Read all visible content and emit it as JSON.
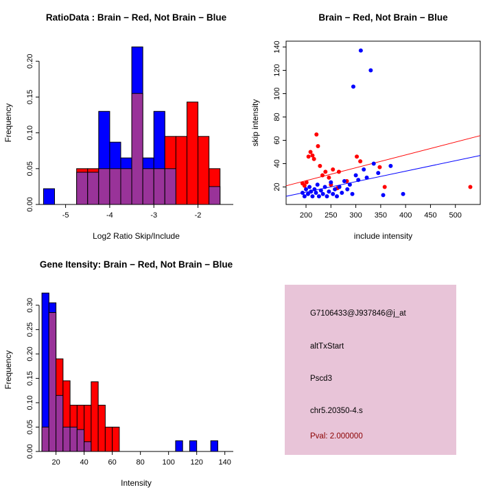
{
  "figure": {
    "background": "#ffffff"
  },
  "chart_data": [
    {
      "id": "ratio_hist",
      "type": "histogram",
      "title": "RatioData : Brain − Red, Not Brain − Blue",
      "xlabel": "Log2 Ratio Skip/Include",
      "ylabel": "Frequency",
      "xlim": [
        -5.6,
        -1.2
      ],
      "ylim": [
        0,
        0.228
      ],
      "xticks": [
        -5,
        -4,
        -3,
        -2
      ],
      "xtick_labels": [
        "-5",
        "-4",
        "-3",
        "-2"
      ],
      "yticks": [
        0,
        0.05,
        0.1,
        0.15,
        0.2
      ],
      "ytick_labels": [
        "0.00",
        "0.05",
        "0.10",
        "0.15",
        "0.20"
      ],
      "bin_edges": [
        -5.5,
        -5.25,
        -5.0,
        -4.75,
        -4.5,
        -4.25,
        -4.0,
        -3.75,
        -3.5,
        -3.25,
        -3.0,
        -2.75,
        -2.5,
        -2.25,
        -2.0,
        -1.75,
        -1.5
      ],
      "series": [
        {
          "name": "Brain",
          "color": "#FF0000",
          "values": [
            0,
            0,
            0,
            0.05,
            0.05,
            0.05,
            0.05,
            0.05,
            0.155,
            0.05,
            0.05,
            0.095,
            0.095,
            0.143,
            0.095,
            0.05
          ]
        },
        {
          "name": "Not Brain",
          "color": "#0000FF",
          "values": [
            0.022,
            0,
            0,
            0.045,
            0.045,
            0.13,
            0.087,
            0.065,
            0.22,
            0.065,
            0.13,
            0.05,
            0,
            0,
            0,
            0.025
          ]
        }
      ],
      "overlap_color": "#993399",
      "box": false
    },
    {
      "id": "scatter",
      "type": "scatter",
      "title": "Brain − Red, Not Brain − Blue",
      "xlabel": "include intensity",
      "ylabel": "skip intensity",
      "xlim": [
        160,
        550
      ],
      "ylim": [
        5,
        145
      ],
      "xticks": [
        200,
        250,
        300,
        350,
        400,
        450,
        500
      ],
      "xtick_labels": [
        "200",
        "250",
        "300",
        "350",
        "400",
        "450",
        "500"
      ],
      "yticks": [
        20,
        40,
        60,
        80,
        100,
        120,
        140
      ],
      "ytick_labels": [
        "20",
        "40",
        "60",
        "80",
        "100",
        "120",
        "140"
      ],
      "series": [
        {
          "name": "Brain",
          "color": "#FF0000",
          "points": [
            [
              193,
              23
            ],
            [
              197,
              21
            ],
            [
              201,
              24
            ],
            [
              205,
              46
            ],
            [
              209,
              50
            ],
            [
              213,
              47
            ],
            [
              216,
              44
            ],
            [
              221,
              65
            ],
            [
              224,
              55
            ],
            [
              228,
              38
            ],
            [
              233,
              30
            ],
            [
              239,
              33
            ],
            [
              246,
              28
            ],
            [
              250,
              22
            ],
            [
              254,
              35
            ],
            [
              263,
              19
            ],
            [
              266,
              33
            ],
            [
              282,
              25
            ],
            [
              302,
              46
            ],
            [
              309,
              42
            ],
            [
              348,
              37
            ],
            [
              358,
              20
            ],
            [
              530,
              20
            ]
          ]
        },
        {
          "name": "Not Brain",
          "color": "#0000FF",
          "points": [
            [
              193,
              15
            ],
            [
              197,
              12
            ],
            [
              200,
              18
            ],
            [
              204,
              14
            ],
            [
              207,
              20
            ],
            [
              210,
              16
            ],
            [
              213,
              12
            ],
            [
              217,
              18
            ],
            [
              220,
              15
            ],
            [
              223,
              22
            ],
            [
              226,
              12
            ],
            [
              230,
              17
            ],
            [
              234,
              14
            ],
            [
              238,
              20
            ],
            [
              242,
              12
            ],
            [
              246,
              16
            ],
            [
              250,
              24
            ],
            [
              254,
              14
            ],
            [
              258,
              18
            ],
            [
              262,
              12
            ],
            [
              267,
              20
            ],
            [
              272,
              15
            ],
            [
              277,
              25
            ],
            [
              283,
              18
            ],
            [
              288,
              22
            ],
            [
              293,
              14
            ],
            [
              295,
              106
            ],
            [
              300,
              30
            ],
            [
              305,
              26
            ],
            [
              310,
              137
            ],
            [
              316,
              35
            ],
            [
              322,
              28
            ],
            [
              330,
              120
            ],
            [
              336,
              40
            ],
            [
              345,
              32
            ],
            [
              355,
              13
            ],
            [
              370,
              38
            ],
            [
              395,
              14
            ]
          ]
        }
      ],
      "fit_lines": [
        {
          "name": "brain-fit",
          "color": "#FF0000",
          "x": [
            160,
            550
          ],
          "y": [
            21,
            64
          ]
        },
        {
          "name": "not-brain-fit",
          "color": "#0000FF",
          "x": [
            160,
            550
          ],
          "y": [
            12,
            47
          ]
        }
      ],
      "box": true
    },
    {
      "id": "intensity_hist",
      "type": "histogram",
      "title": "Gene Itensity: Brain − Red, Not Brain − Blue",
      "xlabel": "Intensity",
      "ylabel": "Frequency",
      "xlim": [
        8,
        146
      ],
      "ylim": [
        0,
        0.335
      ],
      "xticks": [
        20,
        40,
        60,
        80,
        100,
        120,
        140
      ],
      "xtick_labels": [
        "20",
        "40",
        "60",
        "80",
        "100",
        "120",
        "140"
      ],
      "yticks": [
        0,
        0.05,
        0.1,
        0.15,
        0.2,
        0.25,
        0.3
      ],
      "ytick_labels": [
        "0.00",
        "0.05",
        "0.10",
        "0.15",
        "0.20",
        "0.25",
        "0.30"
      ],
      "bin_edges": [
        10,
        15,
        20,
        25,
        30,
        35,
        40,
        45,
        50,
        55,
        60,
        65,
        70,
        75,
        80,
        85,
        90,
        95,
        100,
        105,
        110,
        115,
        120,
        125,
        130,
        135,
        140
      ],
      "series": [
        {
          "name": "Brain",
          "color": "#FF0000",
          "values": [
            0.05,
            0.285,
            0.19,
            0.145,
            0.095,
            0.095,
            0.095,
            0.143,
            0.095,
            0.05,
            0.05,
            0,
            0,
            0,
            0,
            0,
            0,
            0,
            0,
            0,
            0,
            0,
            0,
            0,
            0,
            0
          ]
        },
        {
          "name": "Not Brain",
          "color": "#0000FF",
          "values": [
            0.325,
            0.305,
            0.115,
            0.05,
            0.05,
            0.045,
            0.02,
            0,
            0,
            0,
            0,
            0,
            0,
            0,
            0,
            0,
            0,
            0,
            0,
            0.022,
            0,
            0.022,
            0,
            0,
            0.022,
            0
          ]
        }
      ],
      "overlap_color": "#993399",
      "box": false
    },
    {
      "id": "info_card",
      "type": "card",
      "background": "#E8C4D8",
      "lines": [
        {
          "text": "G7106433@J937846@j_at",
          "color": "#000000"
        },
        {
          "text": "altTxStart",
          "color": "#000000"
        },
        {
          "text": "Pscd3",
          "color": "#000000"
        },
        {
          "text": "chr5.20350-4.s",
          "color": "#000000"
        },
        {
          "text": "Pval: 2.000000",
          "color": "#8B0000"
        }
      ]
    }
  ]
}
